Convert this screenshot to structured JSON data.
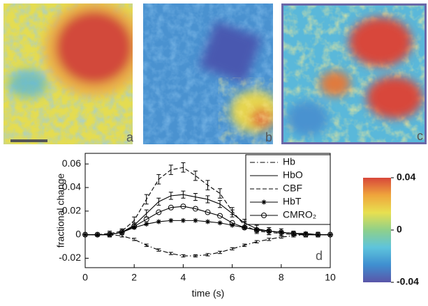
{
  "panel_labels": [
    "a",
    "b",
    "c"
  ],
  "chart_data": {
    "type": "line",
    "panel_label": "d",
    "x_label": "time (s)",
    "y_label": "fractional change",
    "x": [
      0,
      0.5,
      1,
      1.5,
      2,
      2.5,
      3,
      3.5,
      4,
      4.5,
      5,
      5.5,
      6,
      6.5,
      7,
      7.5,
      8,
      8.5,
      9,
      9.5,
      10
    ],
    "xlim": [
      0,
      10
    ],
    "xticks": [
      0,
      2,
      4,
      6,
      8,
      10
    ],
    "ylim": [
      -0.028,
      0.069
    ],
    "yticks": [
      -0.02,
      0,
      0.02,
      0.04,
      0.06
    ],
    "legend": "upper right",
    "series": [
      {
        "name": "Hb",
        "color": "#000000",
        "dash": "dashdot",
        "marker": "none",
        "values": [
          0,
          0,
          0,
          -0.001,
          -0.004,
          -0.009,
          -0.013,
          -0.016,
          -0.018,
          -0.018,
          -0.017,
          -0.015,
          -0.012,
          -0.009,
          -0.006,
          -0.004,
          -0.002,
          -0.001,
          0,
          0,
          0
        ],
        "errors": [
          null,
          0.001,
          0.001,
          0.001,
          0.001,
          0.001,
          0.001,
          0.001,
          0.001,
          0.001,
          0.001,
          0.001,
          0.001,
          0.001,
          0.001,
          0.001,
          0.001,
          0.001,
          0.001,
          0.001,
          null
        ]
      },
      {
        "name": "HbO",
        "color": "#000000",
        "dash": "solid",
        "marker": "none",
        "values": [
          0,
          0,
          0,
          0.002,
          0.008,
          0.018,
          0.028,
          0.033,
          0.034,
          0.032,
          0.03,
          0.026,
          0.018,
          0.01,
          0.005,
          0.003,
          0.002,
          0.001,
          0,
          0,
          0
        ],
        "errors": [
          null,
          0.001,
          0.002,
          0.002,
          0.002,
          0.003,
          0.003,
          0.003,
          0.003,
          0.003,
          0.003,
          0.003,
          0.003,
          0.003,
          0.003,
          0.003,
          0.003,
          0.002,
          0.002,
          0.002,
          null
        ]
      },
      {
        "name": "CBF",
        "color": "#000000",
        "dash": "dash",
        "marker": "none",
        "values": [
          0,
          0,
          0.001,
          0.003,
          0.012,
          0.03,
          0.047,
          0.055,
          0.057,
          0.05,
          0.042,
          0.035,
          0.02,
          0.008,
          0.003,
          0.002,
          0.001,
          0,
          0,
          0,
          0
        ],
        "errors": [
          null,
          0.001,
          0.002,
          0.002,
          0.003,
          0.004,
          0.004,
          0.004,
          0.004,
          0.004,
          0.004,
          0.004,
          0.003,
          0.003,
          0.002,
          0.002,
          0.002,
          0.002,
          0.002,
          0.002,
          null
        ]
      },
      {
        "name": "HbT",
        "color": "#000000",
        "dash": "solid",
        "marker": "star",
        "values": [
          0,
          0,
          0,
          0.002,
          0.006,
          0.009,
          0.011,
          0.012,
          0.012,
          0.012,
          0.011,
          0.01,
          0.008,
          0.006,
          0.004,
          0.003,
          0.002,
          0.001,
          0.001,
          0,
          0
        ]
      },
      {
        "name": "CMRO₂",
        "color": "#000000",
        "dash": "solid",
        "marker": "circle",
        "values": [
          0,
          0,
          0,
          0.002,
          0.007,
          0.013,
          0.019,
          0.023,
          0.024,
          0.022,
          0.019,
          0.016,
          0.01,
          0.006,
          0.004,
          0.003,
          0.002,
          0.001,
          0,
          0,
          0
        ]
      }
    ],
    "colorbar": {
      "lim": [
        -0.04,
        0.04
      ],
      "ticks": [
        -0.04,
        0,
        0.04
      ],
      "colors": [
        "#5a55a8",
        "#3f8fd0",
        "#5ec4dc",
        "#8fd08a",
        "#e8e050",
        "#efa53c",
        "#d8473a"
      ]
    }
  }
}
